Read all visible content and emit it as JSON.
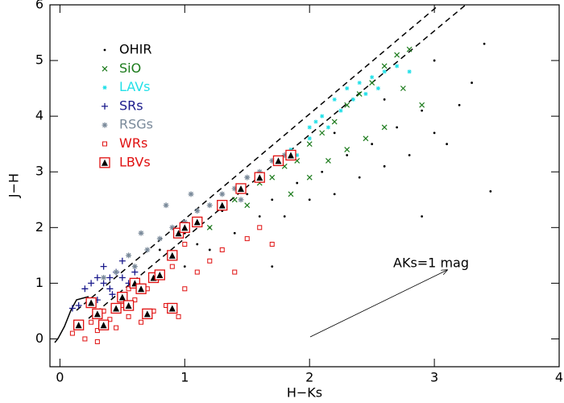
{
  "chart_data": {
    "type": "scatter",
    "x_label": "H−Ks",
    "y_label": "J−H",
    "annotation": "AKs=1 mag",
    "xlim": [
      -0.08,
      4
    ],
    "ylim": [
      -0.5,
      6
    ],
    "xticks": [
      0,
      1,
      2,
      3,
      4
    ],
    "yticks": [
      0,
      1,
      2,
      3,
      4,
      5,
      6
    ],
    "legend": "upper-left",
    "series": [
      {
        "name": "OHIR",
        "color": "#000000",
        "marker": "dot",
        "x": [
          0.9,
          1.0,
          1.1,
          1.2,
          1.3,
          1.4,
          1.5,
          1.6,
          1.7,
          1.8,
          1.9,
          2.0,
          2.1,
          2.2,
          2.3,
          2.4,
          2.5,
          2.6,
          2.7,
          2.8,
          2.9,
          3.0,
          3.1,
          3.2,
          3.3,
          3.4,
          3.45,
          2.9,
          1.7,
          0.8,
          1.2,
          2.2,
          2.6,
          3.0,
          1.0
        ],
        "y": [
          1.5,
          1.9,
          1.7,
          2.0,
          2.3,
          1.9,
          2.6,
          2.2,
          2.5,
          2.2,
          2.8,
          2.5,
          3.0,
          2.6,
          3.3,
          2.9,
          3.5,
          3.1,
          3.8,
          3.3,
          4.1,
          3.7,
          3.5,
          4.2,
          4.6,
          5.3,
          2.65,
          2.2,
          1.3,
          1.6,
          1.6,
          3.7,
          4.3,
          5.0,
          1.3
        ]
      },
      {
        "name": "SiO",
        "color": "#1a7a1a",
        "marker": "x",
        "x": [
          1.2,
          1.4,
          1.5,
          1.6,
          1.7,
          1.8,
          1.9,
          2.0,
          2.1,
          2.2,
          2.3,
          2.4,
          2.5,
          2.6,
          2.7,
          2.8,
          2.6,
          2.3,
          2.0,
          2.9,
          1.85,
          2.45,
          2.75,
          2.15
        ],
        "y": [
          2.0,
          2.5,
          2.4,
          2.8,
          2.9,
          3.1,
          3.2,
          3.5,
          3.7,
          3.9,
          4.2,
          4.4,
          4.6,
          4.9,
          5.1,
          5.2,
          3.8,
          3.4,
          2.9,
          4.2,
          2.6,
          3.6,
          4.5,
          3.2
        ]
      },
      {
        "name": "LAVs",
        "color": "#22e0e8",
        "marker": "star",
        "x": [
          1.9,
          2.0,
          2.05,
          2.1,
          2.15,
          2.2,
          2.25,
          2.3,
          2.35,
          2.4,
          2.45,
          2.5,
          2.55,
          2.6,
          2.7,
          2.8,
          1.85,
          2.0
        ],
        "y": [
          3.3,
          3.6,
          3.9,
          4.0,
          3.8,
          4.3,
          4.1,
          4.5,
          4.3,
          4.6,
          4.4,
          4.7,
          4.5,
          4.8,
          4.9,
          4.8,
          3.4,
          3.8
        ]
      },
      {
        "name": "SRs",
        "color": "#1a1a8c",
        "marker": "plus",
        "x": [
          0.1,
          0.15,
          0.2,
          0.25,
          0.3,
          0.35,
          0.4,
          0.45,
          0.5,
          0.55,
          0.6,
          0.35,
          0.42,
          0.3,
          0.5,
          0.4
        ],
        "y": [
          0.55,
          0.6,
          0.9,
          1.0,
          1.1,
          1.0,
          0.9,
          1.2,
          1.1,
          1.0,
          1.2,
          1.3,
          0.8,
          0.7,
          1.4,
          1.1
        ]
      },
      {
        "name": "RSGs",
        "color": "#7a8a9a",
        "marker": "asterisk",
        "x": [
          0.35,
          0.45,
          0.55,
          0.6,
          0.7,
          0.8,
          0.85,
          0.9,
          1.0,
          1.1,
          1.2,
          1.3,
          1.4,
          1.5,
          1.6,
          1.7,
          1.8,
          0.65,
          1.05,
          1.45
        ],
        "y": [
          1.1,
          1.2,
          1.5,
          1.3,
          1.6,
          1.8,
          2.4,
          2.0,
          2.1,
          2.3,
          2.4,
          2.6,
          2.7,
          2.9,
          3.0,
          3.2,
          3.3,
          1.9,
          2.6,
          2.5
        ]
      },
      {
        "name": "WRs",
        "color": "#e01010",
        "marker": "square",
        "x": [
          0.1,
          0.15,
          0.2,
          0.25,
          0.3,
          0.35,
          0.4,
          0.45,
          0.5,
          0.55,
          0.6,
          0.65,
          0.7,
          0.75,
          0.8,
          0.85,
          0.9,
          1.0,
          1.1,
          1.2,
          1.3,
          1.4,
          1.5,
          1.6,
          1.7,
          1.0,
          0.55,
          0.3,
          0.95
        ],
        "y": [
          0.1,
          0.25,
          0.0,
          0.3,
          0.15,
          0.5,
          0.35,
          0.2,
          0.6,
          0.4,
          0.7,
          0.3,
          0.9,
          0.5,
          1.1,
          0.6,
          1.3,
          0.9,
          1.2,
          1.4,
          1.6,
          1.2,
          1.8,
          2.0,
          1.7,
          1.7,
          0.9,
          -0.05,
          0.4
        ]
      },
      {
        "name": "LBVs",
        "color": "#e01010",
        "marker": "triangle-square",
        "x": [
          0.15,
          0.25,
          0.3,
          0.35,
          0.45,
          0.5,
          0.55,
          0.6,
          0.65,
          0.7,
          0.75,
          0.8,
          0.9,
          0.95,
          1.0,
          1.1,
          1.3,
          1.45,
          1.6,
          1.75,
          1.85,
          0.9
        ],
        "y": [
          0.25,
          0.65,
          0.45,
          0.25,
          0.55,
          0.75,
          0.6,
          1.0,
          0.9,
          0.45,
          1.1,
          1.15,
          1.5,
          1.9,
          2.0,
          2.1,
          2.4,
          2.7,
          2.9,
          3.2,
          3.3,
          0.55
        ]
      }
    ]
  }
}
